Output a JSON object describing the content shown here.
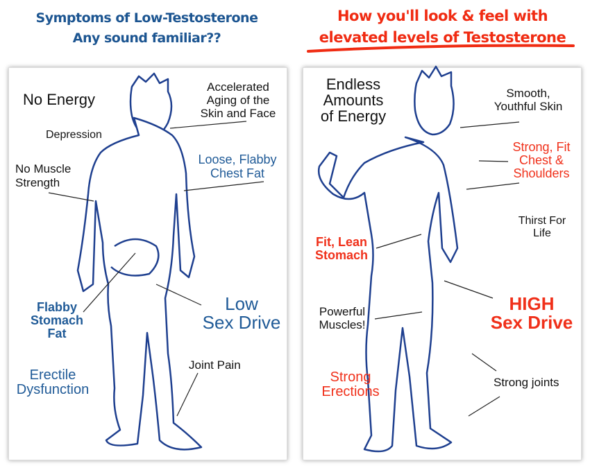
{
  "left": {
    "title_line1": "Symptoms of Low-Testosterone",
    "title_line2": "Any sound familiar??",
    "labels": {
      "no_energy": "No Energy",
      "aging": "Accelerated\nAging of the\nSkin and Face",
      "depression": "Depression",
      "chest_fat": "Loose, Flabby\nChest Fat",
      "muscle": "No Muscle\nStrength",
      "stomach": "Flabby\nStomach\nFat",
      "sex_drive": "Low\nSex Drive",
      "ed": "Erectile\nDysfunction",
      "joint": "Joint Pain"
    }
  },
  "right": {
    "title_line1": "How you'll look & feel with",
    "title_line2": "elevated levels of Testosterone",
    "labels": {
      "energy": "Endless\nAmounts\nof Energy",
      "skin": "Smooth,\nYouthful Skin",
      "chest": "Strong, Fit\nChest &\nShoulders",
      "thirst": "Thirst For\nLife",
      "stomach": "Fit, Lean\nStomach",
      "sex_drive": "HIGH\nSex Drive",
      "muscles": "Powerful\nMuscles!",
      "erections": "Strong\nErections",
      "joints": "Strong joints"
    }
  },
  "colors": {
    "blue": "#1f5a97",
    "red": "#f0301a",
    "figure": "#1e3f8f"
  }
}
